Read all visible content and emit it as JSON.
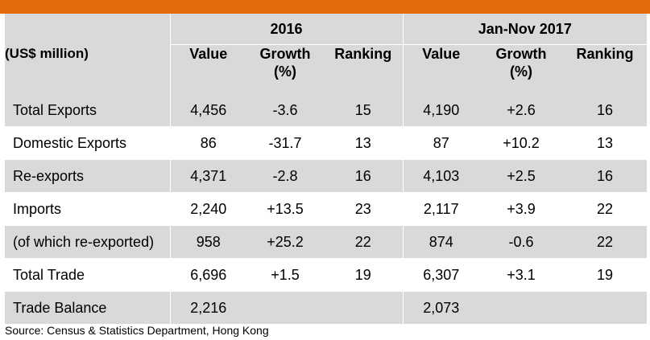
{
  "header": {
    "row_label": "(US$ million)",
    "period_1": "2016",
    "period_2": "Jan-Nov 2017",
    "col_value": "Value",
    "col_growth": "Growth",
    "col_growth_unit": "(%)",
    "col_ranking": "Ranking"
  },
  "rows": [
    {
      "label": "Total Exports",
      "v1": "4,456",
      "g1": "-3.6",
      "r1": "15",
      "v2": "4,190",
      "g2": "+2.6",
      "r2": "16"
    },
    {
      "label": "Domestic Exports",
      "v1": "86",
      "g1": "-31.7",
      "r1": "13",
      "v2": "87",
      "g2": "+10.2",
      "r2": "13"
    },
    {
      "label": "Re-exports",
      "v1": "4,371",
      "g1": "-2.8",
      "r1": "16",
      "v2": "4,103",
      "g2": "+2.5",
      "r2": "16"
    },
    {
      "label": "Imports",
      "v1": "2,240",
      "g1": "+13.5",
      "r1": "23",
      "v2": "2,117",
      "g2": "+3.9",
      "r2": "22"
    },
    {
      "label": "(of which re-exported)",
      "v1": "958",
      "g1": "+25.2",
      "r1": "22",
      "v2": "874",
      "g2": "-0.6",
      "r2": "22"
    },
    {
      "label": "Total Trade",
      "v1": "6,696",
      "g1": "+1.5",
      "r1": "19",
      "v2": "6,307",
      "g2": "+3.1",
      "r2": "19"
    },
    {
      "label": "Trade Balance",
      "v1": "2,216",
      "g1": "",
      "r1": "",
      "v2": "2,073",
      "g2": "",
      "r2": ""
    }
  ],
  "source": "Source: Census & Statistics Department, Hong Kong",
  "colors": {
    "accent_bar": "#e36c0a",
    "shade": "#d9d9d9"
  }
}
